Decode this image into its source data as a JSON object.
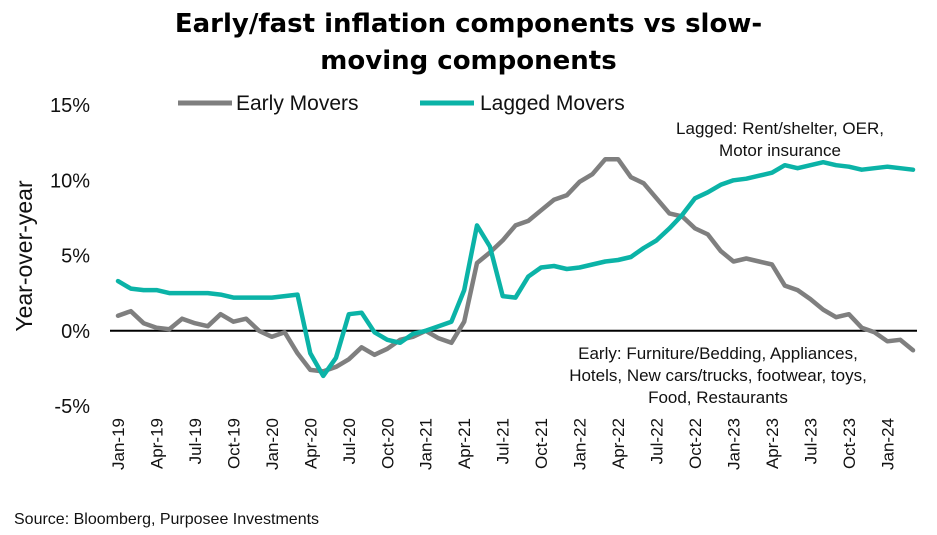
{
  "chart_data": {
    "type": "line",
    "title_line1": "Early/fast inflation components vs slow-",
    "title_line2": "moving components",
    "ylabel": "Year-over-year",
    "ylim": [
      -5,
      15
    ],
    "yticks": [
      -5,
      0,
      5,
      10,
      15
    ],
    "ytick_labels": [
      "-5%",
      "0%",
      "5%",
      "10%",
      "15%"
    ],
    "xtick_labels": [
      "Jan-19",
      "Apr-19",
      "Jul-19",
      "Oct-19",
      "Jan-20",
      "Apr-20",
      "Jul-20",
      "Oct-20",
      "Jan-21",
      "Apr-21",
      "Jul-21",
      "Oct-21",
      "Jan-22",
      "Apr-22",
      "Jul-22",
      "Oct-22",
      "Jan-23",
      "Apr-23",
      "Jul-23",
      "Oct-23",
      "Jan-24"
    ],
    "legend_position": "top",
    "x_months": [
      "Jan-19",
      "Feb-19",
      "Mar-19",
      "Apr-19",
      "May-19",
      "Jun-19",
      "Jul-19",
      "Aug-19",
      "Sep-19",
      "Oct-19",
      "Nov-19",
      "Dec-19",
      "Jan-20",
      "Feb-20",
      "Mar-20",
      "Apr-20",
      "May-20",
      "Jun-20",
      "Jul-20",
      "Aug-20",
      "Sep-20",
      "Oct-20",
      "Nov-20",
      "Dec-20",
      "Jan-21",
      "Feb-21",
      "Mar-21",
      "Apr-21",
      "May-21",
      "Jun-21",
      "Jul-21",
      "Aug-21",
      "Sep-21",
      "Oct-21",
      "Nov-21",
      "Dec-21",
      "Jan-22",
      "Feb-22",
      "Mar-22",
      "Apr-22",
      "May-22",
      "Jun-22",
      "Jul-22",
      "Aug-22",
      "Sep-22",
      "Oct-22",
      "Nov-22",
      "Dec-22",
      "Jan-23",
      "Feb-23",
      "Mar-23",
      "Apr-23",
      "May-23",
      "Jun-23",
      "Jul-23",
      "Aug-23",
      "Sep-23",
      "Oct-23",
      "Nov-23",
      "Dec-23",
      "Jan-24",
      "Feb-24",
      "Mar-24"
    ],
    "series": [
      {
        "name": "Early Movers",
        "color": "#7f7f7f",
        "values": [
          1.0,
          1.3,
          0.5,
          0.2,
          0.1,
          0.8,
          0.5,
          0.3,
          1.1,
          0.6,
          0.8,
          0.0,
          -0.4,
          -0.1,
          -1.5,
          -2.6,
          -2.7,
          -2.4,
          -1.9,
          -1.1,
          -1.6,
          -1.2,
          -0.6,
          -0.4,
          0.0,
          -0.5,
          -0.8,
          0.6,
          4.5,
          5.2,
          6.0,
          7.0,
          7.3,
          8.0,
          8.7,
          9.0,
          9.9,
          10.4,
          11.4,
          11.4,
          10.2,
          9.8,
          8.8,
          7.8,
          7.6,
          6.8,
          6.4,
          5.3,
          4.6,
          4.8,
          4.6,
          4.4,
          3.0,
          2.7,
          2.1,
          1.4,
          0.9,
          1.1,
          0.2,
          -0.1,
          -0.7,
          -0.6,
          -1.3
        ]
      },
      {
        "name": "Lagged Movers",
        "color": "#0bb3a7",
        "values": [
          3.3,
          2.8,
          2.7,
          2.7,
          2.5,
          2.5,
          2.5,
          2.5,
          2.4,
          2.2,
          2.2,
          2.2,
          2.2,
          2.3,
          2.4,
          -1.5,
          -3.0,
          -1.8,
          1.1,
          1.2,
          -0.1,
          -0.6,
          -0.8,
          -0.2,
          0.0,
          0.3,
          0.6,
          2.7,
          7.0,
          5.6,
          2.3,
          2.2,
          3.6,
          4.2,
          4.3,
          4.1,
          4.2,
          4.4,
          4.6,
          4.7,
          4.9,
          5.5,
          6.0,
          6.8,
          7.7,
          8.8,
          9.2,
          9.7,
          10.0,
          10.1,
          10.3,
          10.5,
          11.0,
          10.8,
          11.0,
          11.2,
          11.0,
          10.9,
          10.7,
          10.8,
          10.9,
          10.8,
          10.7
        ]
      }
    ],
    "annotations": {
      "lagged_line1": "Lagged: Rent/shelter, OER,",
      "lagged_line2": "Motor insurance",
      "early_line1": "Early: Furniture/Bedding, Appliances,",
      "early_line2": "Hotels, New cars/trucks, footwear, toys,",
      "early_line3": "Food, Restaurants"
    },
    "source": "Source: Bloomberg, Purposee Investments"
  }
}
